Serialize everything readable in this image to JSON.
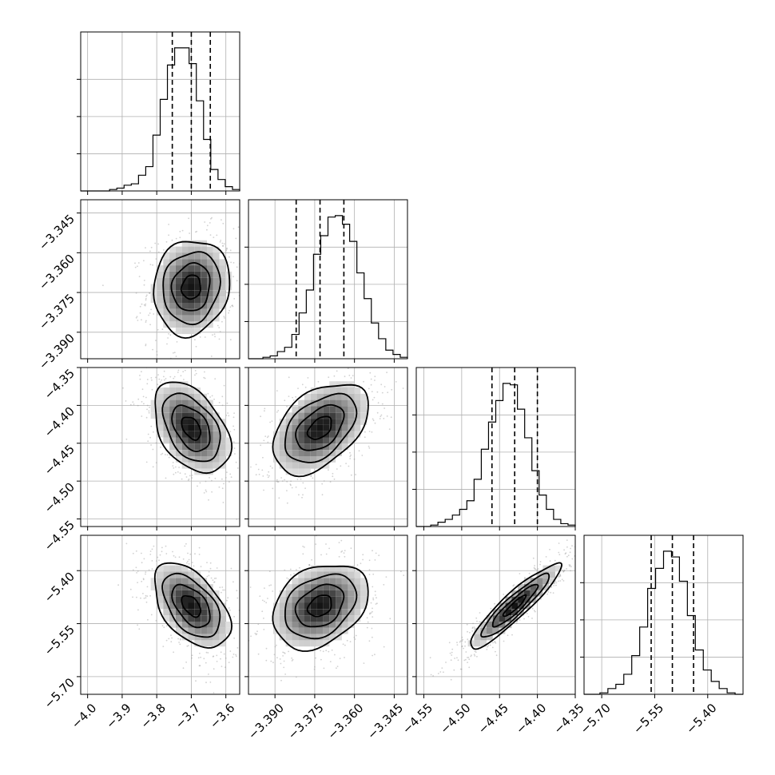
{
  "chart_data": {
    "type": "corner",
    "variables": [
      {
        "median": -3.7,
        "q16": -3.755,
        "q84": -3.645,
        "range": [
          -4.02,
          -3.56
        ],
        "ticks": [
          -4.0,
          -3.9,
          -3.8,
          -3.7,
          -3.6
        ],
        "tick_labels": [
          "−4.0",
          "−3.9",
          "−3.8",
          "−3.7",
          "−3.6"
        ],
        "hist": [
          0.0,
          0.0,
          0.0,
          0.0,
          0.01,
          0.02,
          0.04,
          0.05,
          0.11,
          0.17,
          0.39,
          0.64,
          0.88,
          1.0,
          1.0,
          0.89,
          0.63,
          0.36,
          0.15,
          0.08,
          0.03,
          0.01
        ]
      },
      {
        "median": -3.373,
        "q16": -3.382,
        "q84": -3.364,
        "range": [
          -3.4,
          -3.34
        ],
        "ticks": [
          -3.39,
          -3.375,
          -3.36,
          -3.345
        ],
        "tick_labels": [
          "−3.390",
          "−3.375",
          "−3.360",
          "−3.345"
        ],
        "hist": [
          0.0,
          0.0,
          0.01,
          0.02,
          0.05,
          0.08,
          0.17,
          0.32,
          0.48,
          0.73,
          0.86,
          0.99,
          1.0,
          0.94,
          0.82,
          0.6,
          0.42,
          0.25,
          0.14,
          0.06,
          0.03,
          0.01
        ]
      },
      {
        "median": -4.43,
        "q16": -4.46,
        "q84": -4.4,
        "range": [
          -4.56,
          -4.35
        ],
        "ticks": [
          -4.55,
          -4.5,
          -4.45,
          -4.4,
          -4.35
        ],
        "tick_labels": [
          "−4.55",
          "−4.50",
          "−4.45",
          "−4.40",
          "−4.35"
        ],
        "hist": [
          0.0,
          0.0,
          0.01,
          0.03,
          0.05,
          0.08,
          0.12,
          0.18,
          0.33,
          0.54,
          0.73,
          0.88,
          1.0,
          0.99,
          0.82,
          0.62,
          0.39,
          0.22,
          0.12,
          0.05,
          0.02,
          0.01
        ]
      },
      {
        "median": -5.5,
        "q16": -5.56,
        "q84": -5.44,
        "range": [
          -5.75,
          -5.3
        ],
        "ticks": [
          -5.7,
          -5.55,
          -5.4
        ],
        "tick_labels": [
          "−5.70",
          "−5.55",
          "−5.40"
        ],
        "hist": [
          0.0,
          0.0,
          0.01,
          0.04,
          0.07,
          0.14,
          0.27,
          0.47,
          0.74,
          0.88,
          1.0,
          0.96,
          0.79,
          0.55,
          0.31,
          0.17,
          0.09,
          0.04,
          0.01,
          0.0
        ]
      }
    ],
    "pairs": [
      {
        "row": 1,
        "col": 0,
        "rho": 0.1
      },
      {
        "row": 2,
        "col": 0,
        "rho": -0.42
      },
      {
        "row": 2,
        "col": 1,
        "rho": 0.45
      },
      {
        "row": 3,
        "col": 0,
        "rho": -0.5
      },
      {
        "row": 3,
        "col": 1,
        "rho": 0.3
      },
      {
        "row": 3,
        "col": 2,
        "rho": 0.92
      }
    ],
    "contour_levels_sigma": [
      0.5,
      1.0,
      1.5,
      2.0
    ],
    "grid": true,
    "colors": {
      "line": "#000000",
      "grid": "#b0b0b0",
      "points": "#9a9a9a"
    }
  }
}
